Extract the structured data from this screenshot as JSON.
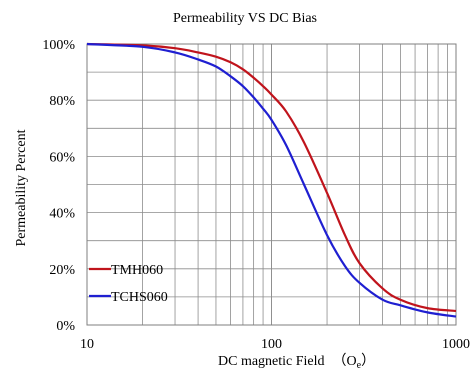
{
  "chart_data": {
    "type": "line",
    "title": "Permeability  VS DC Bias",
    "xlabel": "DC magnetic Field",
    "xunit": {
      "open": "（",
      "symbol": "O",
      "subscript": "e",
      "close": "）"
    },
    "ylabel": "Permeability Percent",
    "x_scale": "log",
    "xlim": [
      10,
      1000
    ],
    "ylim": [
      0,
      100
    ],
    "x_ticks": [
      {
        "value": 10,
        "label": "10"
      },
      {
        "value": 100,
        "label": "100"
      },
      {
        "value": 1000,
        "label": "1000"
      }
    ],
    "y_ticks": [
      {
        "value": 0,
        "label": "0%"
      },
      {
        "value": 20,
        "label": "20%"
      },
      {
        "value": 40,
        "label": "40%"
      },
      {
        "value": 60,
        "label": "60%"
      },
      {
        "value": 80,
        "label": "80%"
      },
      {
        "value": 100,
        "label": "100%"
      }
    ],
    "grid": true,
    "legend_position": "bottom-left",
    "series": [
      {
        "name": "TMH060",
        "color": "#c0141c",
        "x": [
          10,
          20,
          30,
          40,
          50,
          60,
          70,
          80,
          90,
          100,
          120,
          150,
          200,
          250,
          300,
          400,
          500,
          700,
          1000
        ],
        "y": [
          100,
          99.5,
          98.5,
          97,
          95.5,
          93.5,
          91,
          88,
          85,
          82,
          76,
          65,
          47,
          32,
          22,
          13,
          9,
          6,
          5
        ]
      },
      {
        "name": "TCHS060",
        "color": "#1f1fd1",
        "x": [
          10,
          20,
          30,
          40,
          50,
          60,
          70,
          80,
          90,
          100,
          120,
          150,
          200,
          250,
          300,
          400,
          500,
          700,
          1000
        ],
        "y": [
          100,
          99,
          97,
          94.5,
          92,
          88.5,
          85,
          81,
          77,
          73,
          64,
          50,
          32,
          21,
          15,
          9,
          7,
          4.5,
          3
        ]
      }
    ]
  }
}
